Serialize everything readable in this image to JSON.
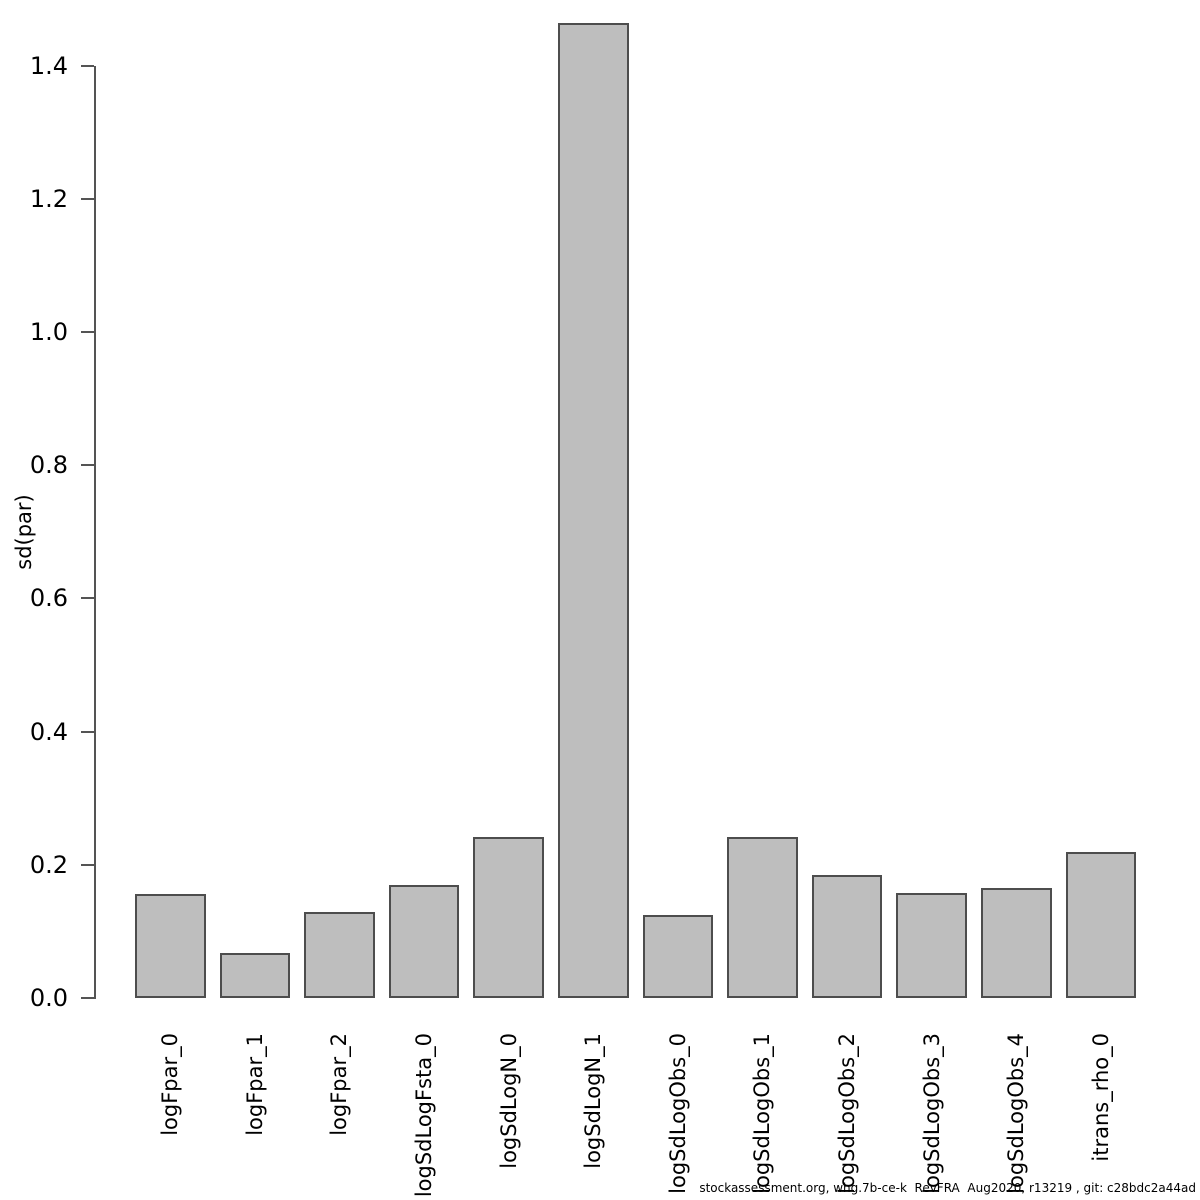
{
  "chart_data": {
    "type": "bar",
    "title": "",
    "xlabel": "",
    "ylabel": "sd(par)",
    "categories": [
      "logFpar_0",
      "logFpar_1",
      "logFpar_2",
      "logSdLogFsta_0",
      "logSdLogN_0",
      "logSdLogN_1",
      "logSdLogObs_0",
      "logSdLogObs_1",
      "logSdLogObs_2",
      "logSdLogObs_3",
      "logSdLogObs_4",
      "itrans_rho_0"
    ],
    "values": [
      0.156,
      0.068,
      0.129,
      0.17,
      0.241,
      1.464,
      0.124,
      0.242,
      0.184,
      0.157,
      0.165,
      0.219
    ],
    "ylim": [
      0,
      1.4
    ],
    "yticks": [
      0.0,
      0.2,
      0.4,
      0.6,
      0.8,
      1.0,
      1.2,
      1.4
    ],
    "grid": false,
    "legend_position": "none",
    "bar_fill_color": "#bebebe",
    "bar_border_color": "#4d4d4d",
    "axis_color": "#545454"
  },
  "footer": {
    "text": "stockassessment.org, whg.7b-ce-k  RevFRA  Aug2020, r13219 , git: c28bdc2a44ad"
  }
}
